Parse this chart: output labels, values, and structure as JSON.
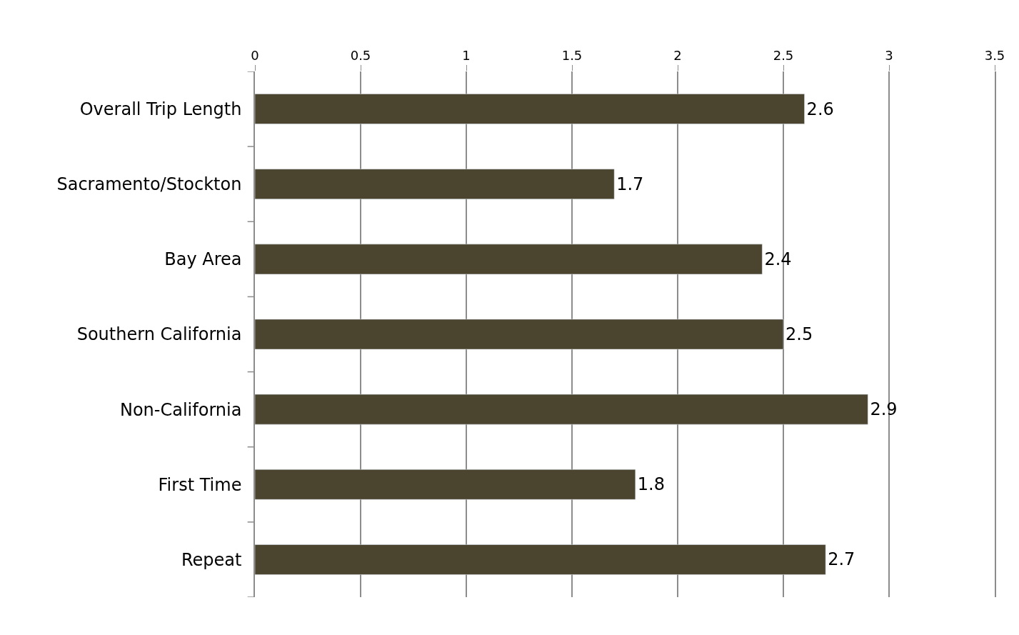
{
  "chart_data": {
    "type": "bar",
    "orientation": "horizontal",
    "categories": [
      "Overall Trip Length",
      "Sacramento/Stockton",
      "Bay Area",
      "Southern California",
      "Non-California",
      "First Time",
      "Repeat"
    ],
    "values": [
      2.6,
      1.7,
      2.4,
      2.5,
      2.9,
      1.8,
      2.7
    ],
    "color": "#4b4530",
    "xlim": [
      0,
      3.5
    ],
    "xticks": [
      0,
      0.5,
      1,
      1.5,
      2,
      2.5,
      3,
      3.5
    ],
    "grid": "x",
    "data_labels": true
  }
}
